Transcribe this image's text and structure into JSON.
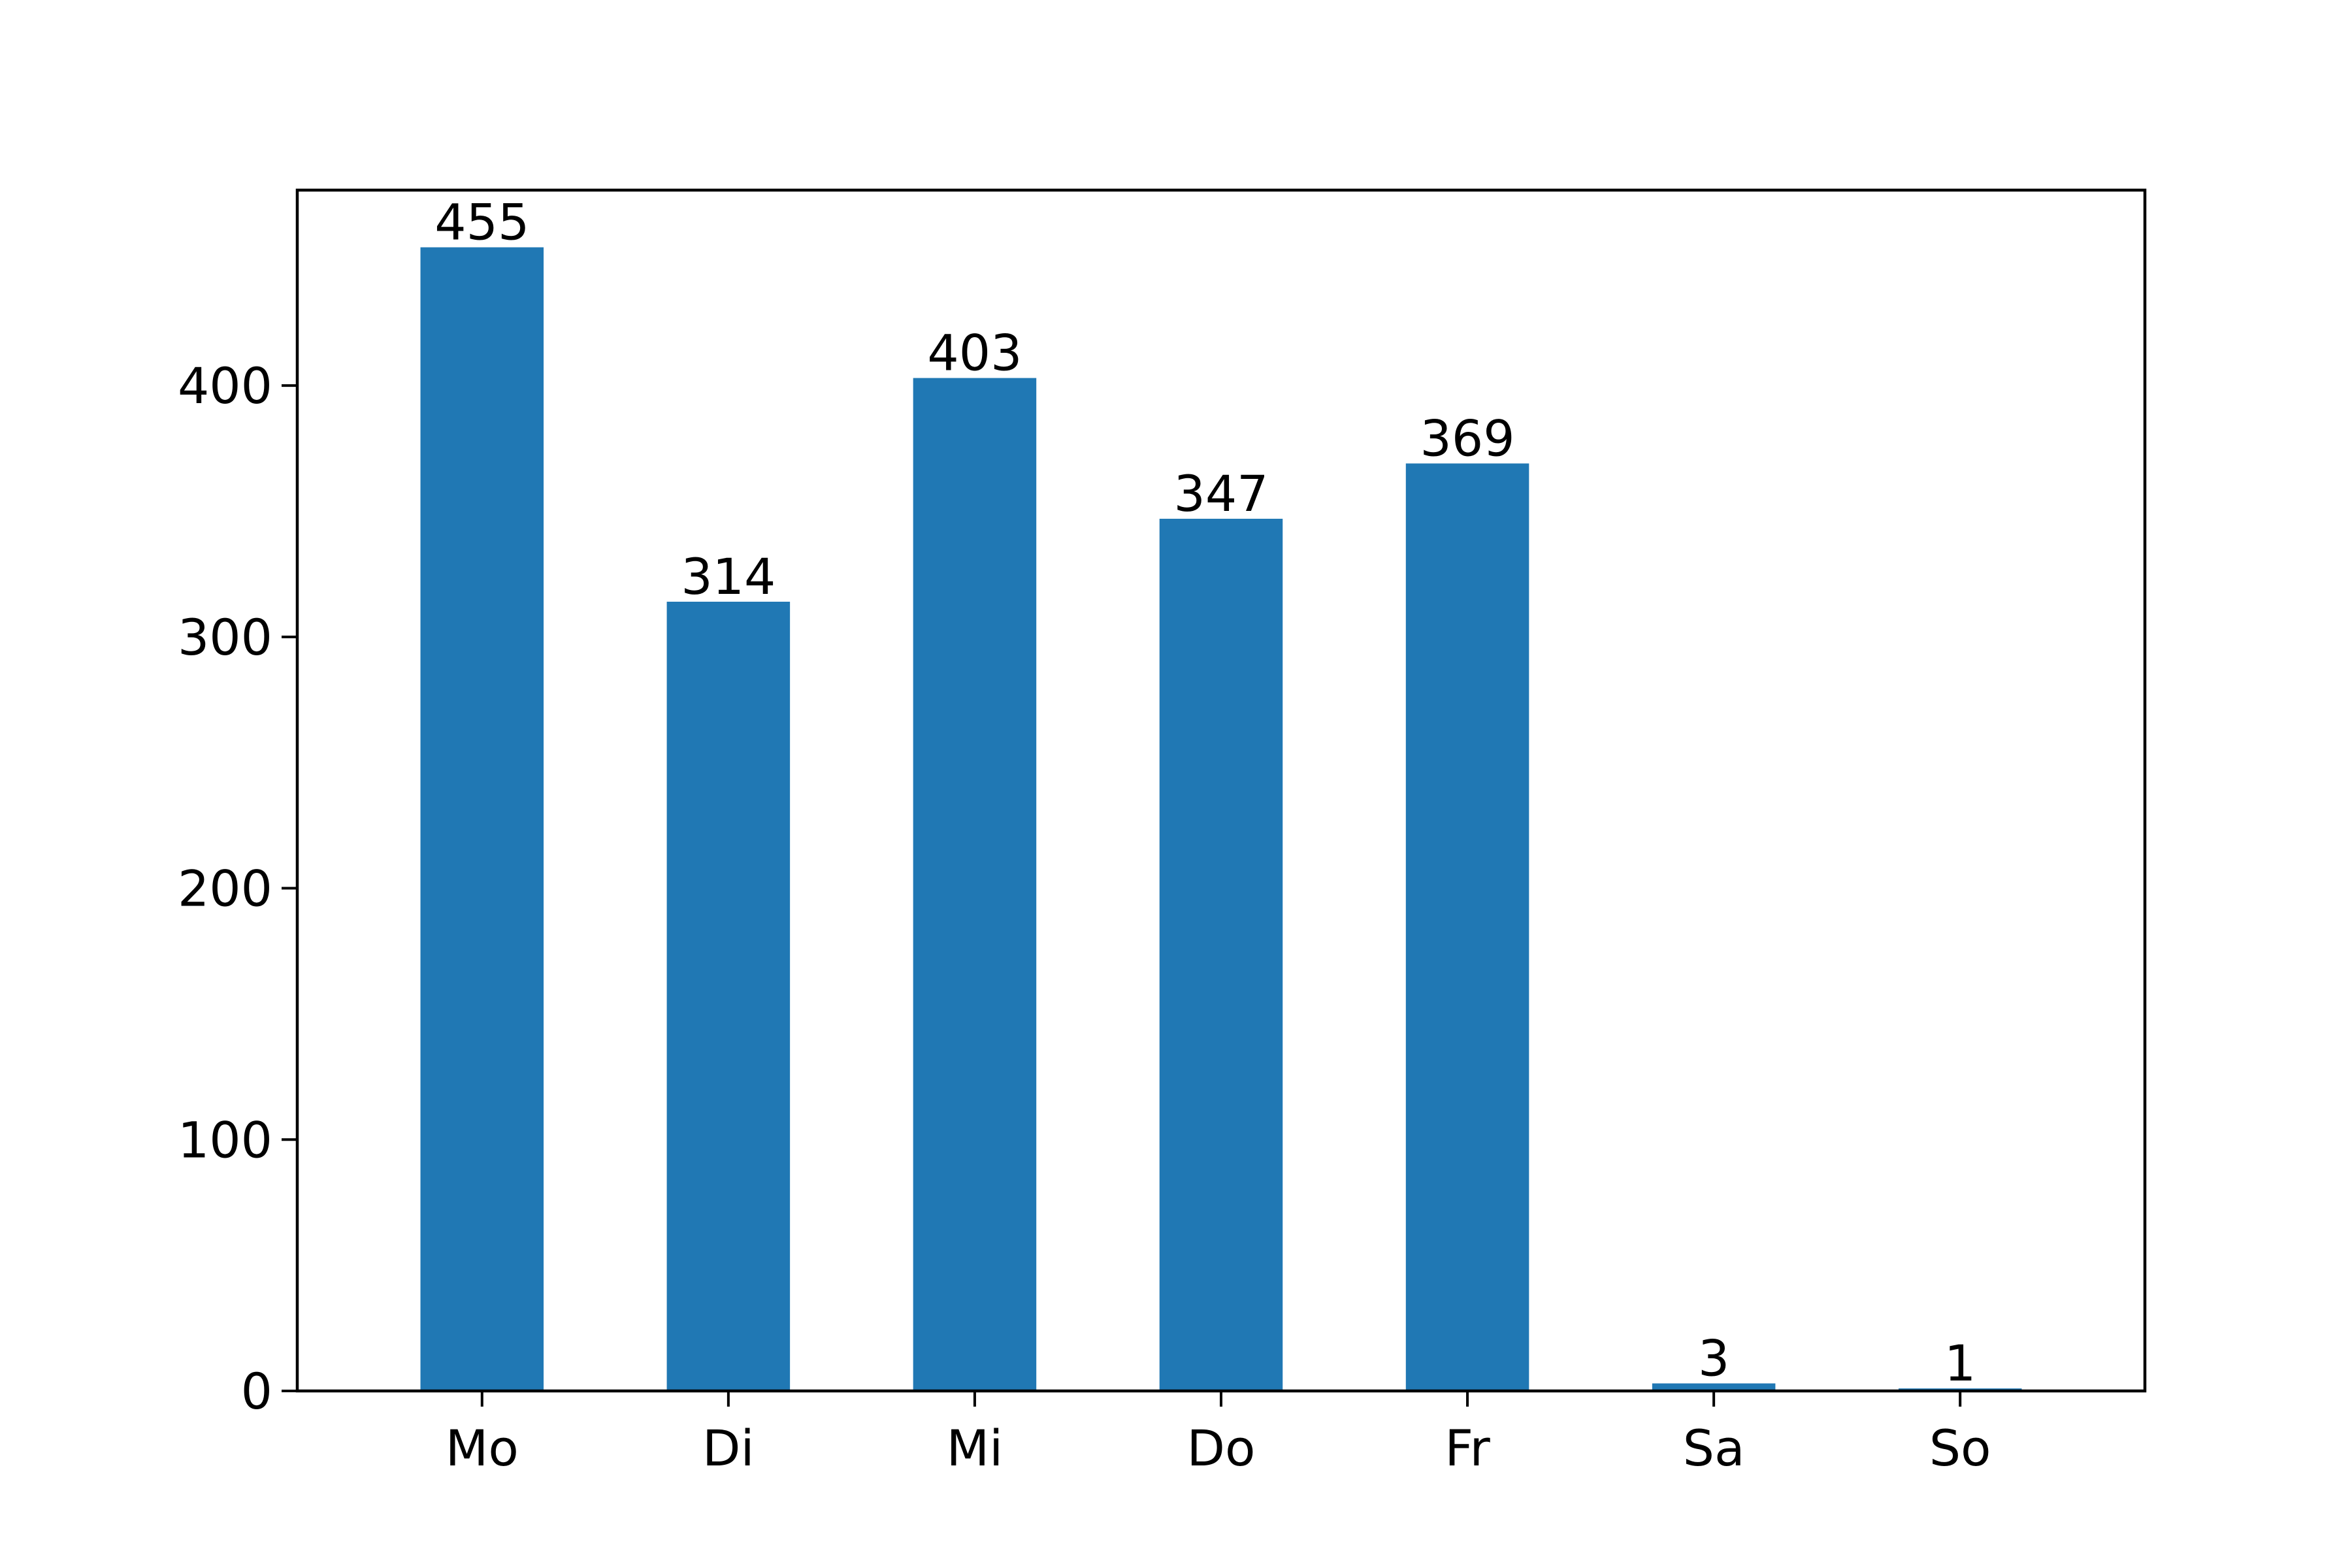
{
  "chart_data": {
    "type": "bar",
    "title": "",
    "xlabel": "",
    "ylabel": "",
    "categories": [
      "Mo",
      "Di",
      "Mi",
      "Do",
      "Fr",
      "Sa",
      "So"
    ],
    "values": [
      455,
      314,
      403,
      347,
      369,
      3,
      1
    ],
    "data_labels": [
      "455",
      "314",
      "403",
      "347",
      "369",
      "3",
      "1"
    ],
    "ylim": [
      0,
      477.75
    ],
    "yticks": [
      0,
      100,
      200,
      300,
      400
    ],
    "ytick_labels": [
      "0",
      "100",
      "200",
      "300",
      "400"
    ],
    "grid": false,
    "legend": "none",
    "colors": {
      "bar": "#2078b4",
      "axis": "#000000",
      "text": "#000000"
    }
  }
}
